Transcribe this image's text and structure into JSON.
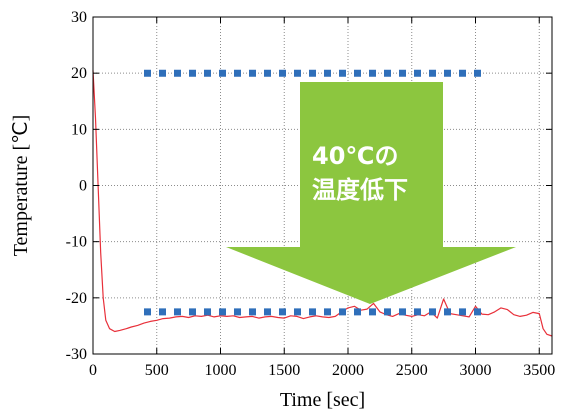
{
  "chart_data": {
    "type": "line",
    "title": "",
    "xlabel": "Time [sec]",
    "ylabel": "Temperature [℃]",
    "xlim": [
      0,
      3600
    ],
    "ylim": [
      -30,
      30
    ],
    "xticks": [
      0,
      500,
      1000,
      1500,
      2000,
      2500,
      3000,
      3500
    ],
    "yticks": [
      -30,
      -20,
      -10,
      0,
      10,
      20,
      30
    ],
    "grid": true,
    "series": [
      {
        "color": "#e8303a",
        "style": "solid",
        "x": [
          0,
          20,
          40,
          60,
          80,
          100,
          130,
          170,
          210,
          260,
          300,
          350,
          400,
          450,
          500,
          550,
          600,
          650,
          700,
          750,
          800,
          850,
          900,
          950,
          1000,
          1050,
          1100,
          1150,
          1200,
          1250,
          1300,
          1350,
          1400,
          1450,
          1500,
          1550,
          1600,
          1650,
          1700,
          1750,
          1800,
          1850,
          1900,
          1950,
          2000,
          2050,
          2100,
          2150,
          2200,
          2250,
          2300,
          2350,
          2400,
          2450,
          2500,
          2550,
          2600,
          2650,
          2700,
          2750,
          2800,
          2850,
          2900,
          2950,
          3000,
          3050,
          3100,
          3150,
          3200,
          3250,
          3300,
          3350,
          3400,
          3450,
          3500,
          3530,
          3560,
          3600
        ],
        "y": [
          20.5,
          12,
          0,
          -12,
          -20,
          -24,
          -25.5,
          -26,
          -25.8,
          -25.5,
          -25.2,
          -24.9,
          -24.5,
          -24.2,
          -24,
          -23.7,
          -23.6,
          -23.4,
          -23.3,
          -23.5,
          -23.2,
          -23.3,
          -23.1,
          -23.4,
          -23.2,
          -23.3,
          -23.2,
          -23.5,
          -23.4,
          -23.3,
          -23.6,
          -23.4,
          -23.3,
          -23.5,
          -23.6,
          -23.2,
          -23.3,
          -23.7,
          -23.4,
          -23.2,
          -23.4,
          -23.5,
          -23.3,
          -22.5,
          -21.8,
          -21.5,
          -22.2,
          -22.0,
          -21.0,
          -22.5,
          -23.0,
          -23.3,
          -22.8,
          -23.1,
          -23.3,
          -23.0,
          -23.2,
          -22.5,
          -23.6,
          -20.2,
          -22.8,
          -23.0,
          -23.2,
          -23.4,
          -21.5,
          -22.9,
          -23.0,
          -22.5,
          -21.8,
          -22.1,
          -23.0,
          -23.3,
          -23.1,
          -22.6,
          -22.8,
          -25.5,
          -26.5,
          -26.8
        ]
      },
      {
        "color": "#2f6fba",
        "style": "dotted",
        "x": [
          400,
          3100
        ],
        "y": [
          20,
          20
        ]
      },
      {
        "color": "#2f6fba",
        "style": "dotted",
        "x": [
          400,
          3100
        ],
        "y": [
          -22.5,
          -22.5
        ]
      }
    ],
    "annotation": {
      "line1": "40℃の",
      "line2": "温度低下",
      "color": "#8cc63f"
    }
  }
}
